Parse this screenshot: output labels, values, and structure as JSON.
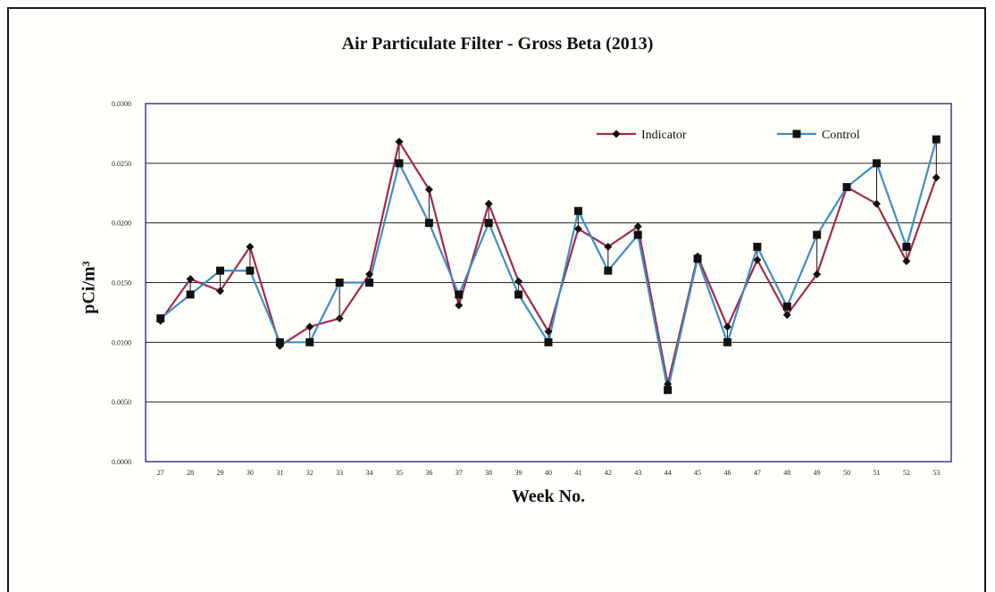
{
  "chart_data": {
    "type": "line",
    "title": "Air Particulate Filter - Gross Beta (2013)",
    "xlabel": "Week No.",
    "ylabel": "pCi/m³",
    "ylim": [
      0,
      0.03
    ],
    "yticks": [
      "0.0000",
      "0.0050",
      "0.0100",
      "0.0150",
      "0.0200",
      "0.0250",
      "0.0300"
    ],
    "grid": true,
    "legend": "top-right",
    "categories": [
      "27",
      "28",
      "29",
      "30",
      "31",
      "32",
      "33",
      "34",
      "35",
      "36",
      "37",
      "38",
      "39",
      "40",
      "41",
      "42",
      "43",
      "44",
      "45",
      "46",
      "47",
      "48",
      "49",
      "50",
      "51",
      "52",
      "53"
    ],
    "series": [
      {
        "name": "Indicator",
        "color": "#a3284e",
        "marker": "diamond",
        "values": [
          0.0118,
          0.0153,
          0.0143,
          0.018,
          0.0097,
          0.0113,
          0.012,
          0.0157,
          0.0268,
          0.0228,
          0.0131,
          0.0216,
          0.0151,
          0.0109,
          0.0195,
          0.018,
          0.0197,
          0.0065,
          0.0172,
          0.0113,
          0.0169,
          0.0123,
          0.0157,
          0.023,
          0.0216,
          0.0168,
          0.0238
        ]
      },
      {
        "name": "Control",
        "color": "#3e8ec0",
        "marker": "square",
        "values": [
          0.012,
          0.014,
          0.016,
          0.016,
          0.01,
          0.01,
          0.015,
          0.015,
          0.025,
          0.02,
          0.014,
          0.02,
          0.014,
          0.01,
          0.021,
          0.016,
          0.019,
          0.006,
          0.017,
          0.01,
          0.018,
          0.013,
          0.019,
          0.023,
          0.025,
          0.018,
          0.027
        ]
      }
    ]
  }
}
